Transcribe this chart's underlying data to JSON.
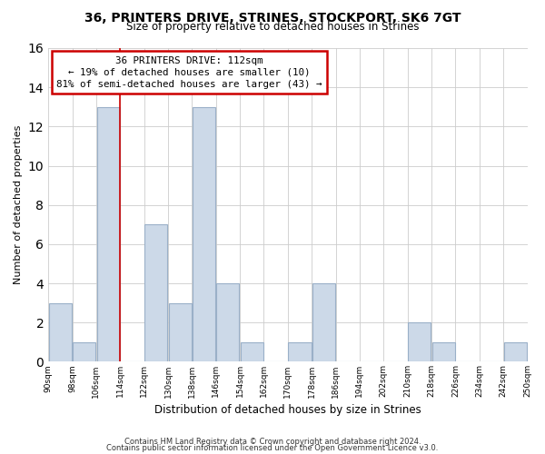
{
  "title": "36, PRINTERS DRIVE, STRINES, STOCKPORT, SK6 7GT",
  "subtitle": "Size of property relative to detached houses in Strines",
  "xlabel": "Distribution of detached houses by size in Strines",
  "ylabel": "Number of detached properties",
  "bar_color": "#ccd9e8",
  "bar_edge_color": "#9ab0c8",
  "bins": [
    90,
    98,
    106,
    114,
    122,
    130,
    138,
    146,
    154,
    162,
    170,
    178,
    186,
    194,
    202,
    210,
    218,
    226,
    234,
    242,
    250
  ],
  "counts": [
    3,
    1,
    13,
    0,
    7,
    3,
    13,
    4,
    1,
    0,
    1,
    4,
    0,
    0,
    0,
    2,
    1,
    0,
    0,
    1
  ],
  "tick_labels": [
    "90sqm",
    "98sqm",
    "106sqm",
    "114sqm",
    "122sqm",
    "130sqm",
    "138sqm",
    "146sqm",
    "154sqm",
    "162sqm",
    "170sqm",
    "178sqm",
    "186sqm",
    "194sqm",
    "202sqm",
    "210sqm",
    "218sqm",
    "226sqm",
    "234sqm",
    "242sqm",
    "250sqm"
  ],
  "ylim": [
    0,
    16
  ],
  "yticks": [
    0,
    2,
    4,
    6,
    8,
    10,
    12,
    14,
    16
  ],
  "property_bin_edge": 114,
  "ann_line1": "36 PRINTERS DRIVE: 112sqm",
  "ann_line2": "← 19% of detached houses are smaller (10)",
  "ann_line3": "81% of semi-detached houses are larger (43) →",
  "annotation_box_color": "white",
  "annotation_box_edge": "#cc0000",
  "vline_color": "#cc0000",
  "footer1": "Contains HM Land Registry data © Crown copyright and database right 2024.",
  "footer2": "Contains public sector information licensed under the Open Government Licence v3.0.",
  "bg_color": "#ffffff",
  "grid_color": "#cccccc"
}
